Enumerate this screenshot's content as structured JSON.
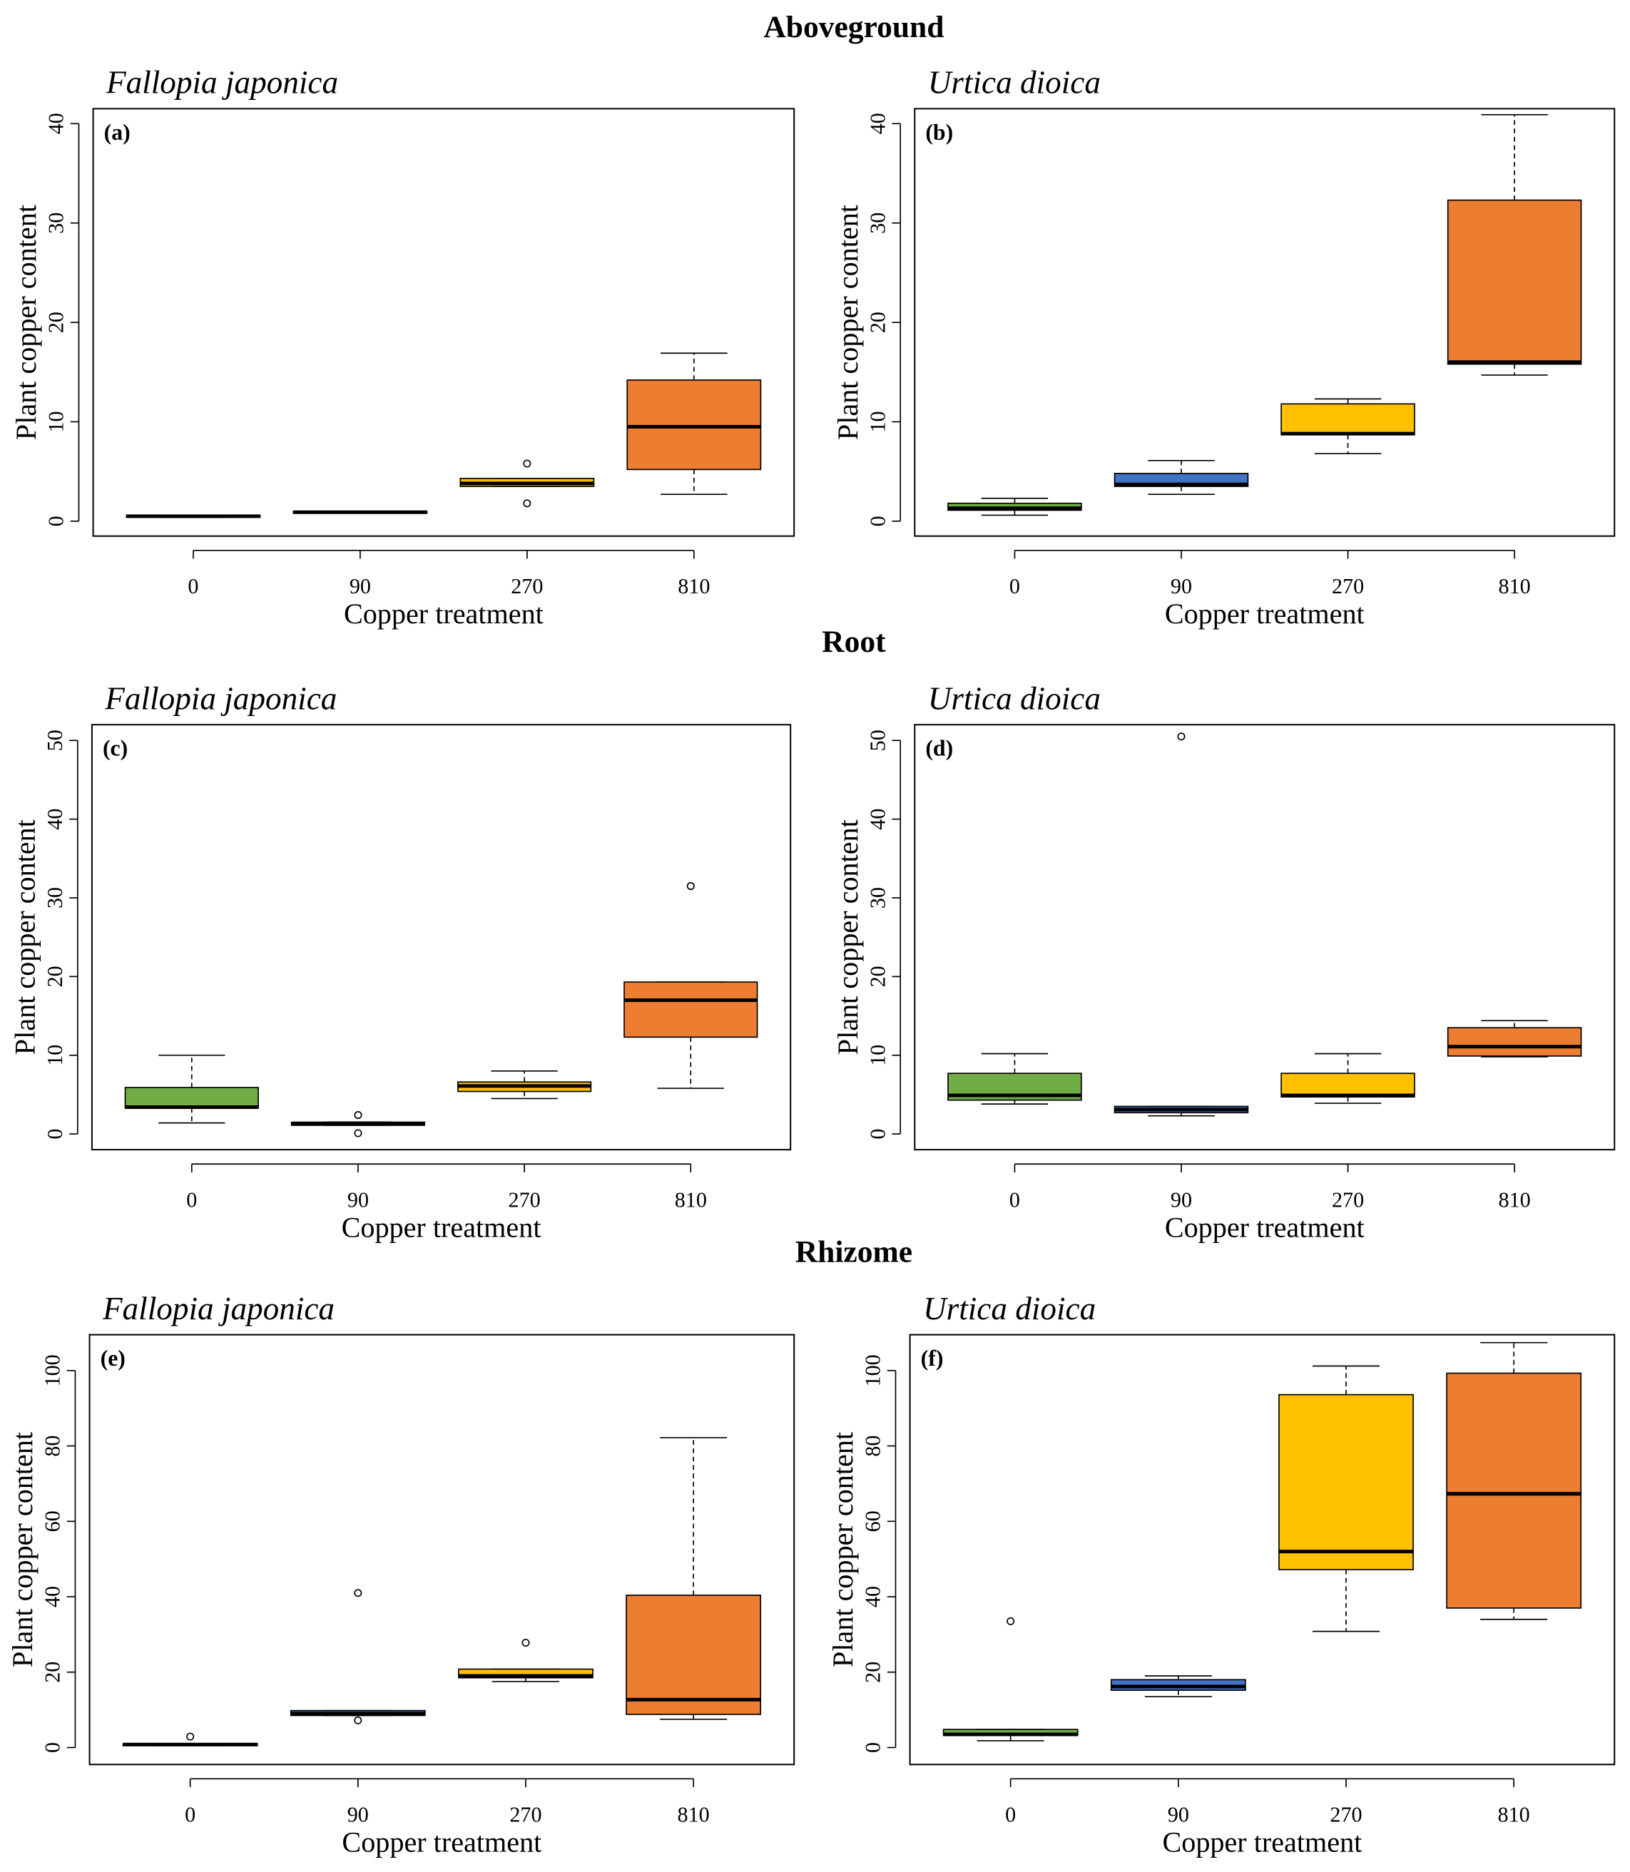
{
  "colors": {
    "0": "#70ad47",
    "90": "#4472c4",
    "270": "#ffc000",
    "810": "#ed7d31"
  },
  "sections": [
    "Aboveground",
    "Root",
    "Rhizome"
  ],
  "chart_data": [
    {
      "type": "box",
      "panel": "(a)",
      "section": "Aboveground",
      "title": "Fallopia japonica",
      "xlabel": "Copper treatment",
      "ylabel": "Plant copper content",
      "categories": [
        "0",
        "90",
        "270",
        "810"
      ],
      "yticks": [
        0,
        10,
        20,
        30,
        40
      ],
      "ylim": [
        -1.5,
        41.5
      ],
      "boxes": [
        {
          "min": 0.4,
          "q1": 0.4,
          "median": 0.5,
          "q3": 0.6,
          "max": 0.6,
          "outliers": []
        },
        {
          "min": 0.8,
          "q1": 0.8,
          "median": 0.9,
          "q3": 1.0,
          "max": 1.0,
          "outliers": []
        },
        {
          "min": 3.5,
          "q1": 3.5,
          "median": 3.8,
          "q3": 4.3,
          "max": 4.3,
          "outliers": [
            5.8,
            1.8
          ]
        },
        {
          "min": 2.7,
          "q1": 5.2,
          "median": 9.5,
          "q3": 14.2,
          "max": 16.9,
          "outliers": []
        }
      ]
    },
    {
      "type": "box",
      "panel": "(b)",
      "section": "Aboveground",
      "title": "Urtica dioica",
      "xlabel": "Copper treatment",
      "ylabel": "Plant copper content",
      "categories": [
        "0",
        "90",
        "270",
        "810"
      ],
      "yticks": [
        0,
        10,
        20,
        30,
        40
      ],
      "ylim": [
        -1.5,
        41.5
      ],
      "boxes": [
        {
          "min": 0.6,
          "q1": 1.1,
          "median": 1.3,
          "q3": 1.8,
          "max": 2.3,
          "outliers": []
        },
        {
          "min": 2.7,
          "q1": 3.5,
          "median": 3.7,
          "q3": 4.8,
          "max": 6.1,
          "outliers": []
        },
        {
          "min": 6.8,
          "q1": 8.7,
          "median": 8.8,
          "q3": 11.8,
          "max": 12.3,
          "outliers": []
        },
        {
          "min": 14.7,
          "q1": 15.8,
          "median": 16.0,
          "q3": 32.3,
          "max": 40.9,
          "outliers": []
        }
      ]
    },
    {
      "type": "box",
      "panel": "(c)",
      "section": "Root",
      "title": "Fallopia japonica",
      "xlabel": "Copper treatment",
      "ylabel": "Plant copper content",
      "categories": [
        "0",
        "90",
        "270",
        "810"
      ],
      "yticks": [
        0,
        10,
        20,
        30,
        40,
        50
      ],
      "ylim": [
        -2,
        52
      ],
      "boxes": [
        {
          "min": 1.4,
          "q1": 3.3,
          "median": 3.4,
          "q3": 5.9,
          "max": 10.0,
          "outliers": []
        },
        {
          "min": 1.1,
          "q1": 1.1,
          "median": 1.3,
          "q3": 1.5,
          "max": 1.5,
          "outliers": [
            2.4,
            0.1
          ]
        },
        {
          "min": 4.5,
          "q1": 5.4,
          "median": 6.1,
          "q3": 6.6,
          "max": 8.0,
          "outliers": []
        },
        {
          "min": 5.8,
          "q1": 12.3,
          "median": 17.0,
          "q3": 19.3,
          "max": 19.3,
          "outliers": [
            31.5
          ]
        }
      ]
    },
    {
      "type": "box",
      "panel": "(d)",
      "section": "Root",
      "title": "Urtica dioica",
      "xlabel": "Copper treatment",
      "ylabel": "Plant copper content",
      "categories": [
        "0",
        "90",
        "270",
        "810"
      ],
      "yticks": [
        0,
        10,
        20,
        30,
        40,
        50
      ],
      "ylim": [
        -2,
        52
      ],
      "boxes": [
        {
          "min": 3.8,
          "q1": 4.3,
          "median": 4.9,
          "q3": 7.7,
          "max": 10.2,
          "outliers": []
        },
        {
          "min": 2.3,
          "q1": 2.7,
          "median": 3.1,
          "q3": 3.5,
          "max": 3.5,
          "outliers": [
            50.5
          ]
        },
        {
          "min": 3.9,
          "q1": 4.7,
          "median": 4.9,
          "q3": 7.7,
          "max": 10.2,
          "outliers": []
        },
        {
          "min": 9.8,
          "q1": 9.9,
          "median": 11.1,
          "q3": 13.5,
          "max": 14.4,
          "outliers": []
        }
      ]
    },
    {
      "type": "box",
      "panel": "(e)",
      "section": "Rhizome",
      "title": "Fallopia japonica",
      "xlabel": "Copper treatment",
      "ylabel": "Plant copper content",
      "categories": [
        "0",
        "90",
        "270",
        "810"
      ],
      "yticks": [
        0,
        20,
        40,
        60,
        80,
        100
      ],
      "ylim": [
        -4.5,
        109.5
      ],
      "boxes": [
        {
          "min": 0.5,
          "q1": 0.5,
          "median": 0.8,
          "q3": 1.0,
          "max": 1.0,
          "outliers": [
            2.9
          ]
        },
        {
          "min": 8.5,
          "q1": 8.5,
          "median": 9.0,
          "q3": 9.8,
          "max": 9.8,
          "outliers": [
            41,
            7.2
          ]
        },
        {
          "min": 17.5,
          "q1": 18.5,
          "median": 19.0,
          "q3": 20.8,
          "max": 20.8,
          "outliers": [
            27.8
          ]
        },
        {
          "min": 7.5,
          "q1": 8.8,
          "median": 12.7,
          "q3": 40.4,
          "max": 82.2,
          "outliers": []
        }
      ]
    },
    {
      "type": "box",
      "panel": "(f)",
      "section": "Rhizome",
      "title": "Urtica dioica",
      "xlabel": "Copper treatment",
      "ylabel": "Plant copper content",
      "categories": [
        "0",
        "90",
        "270",
        "810"
      ],
      "yticks": [
        0,
        20,
        40,
        60,
        80,
        100
      ],
      "ylim": [
        -4.5,
        109.5
      ],
      "boxes": [
        {
          "min": 1.8,
          "q1": 3.2,
          "median": 3.5,
          "q3": 4.8,
          "max": 4.8,
          "outliers": [
            33.5
          ]
        },
        {
          "min": 13.5,
          "q1": 15.2,
          "median": 16.2,
          "q3": 18.0,
          "max": 19.0,
          "outliers": []
        },
        {
          "min": 30.8,
          "q1": 47.2,
          "median": 52.0,
          "q3": 93.6,
          "max": 101.2,
          "outliers": []
        },
        {
          "min": 34.0,
          "q1": 37.0,
          "median": 67.3,
          "q3": 99.3,
          "max": 107.4,
          "outliers": []
        }
      ]
    }
  ]
}
